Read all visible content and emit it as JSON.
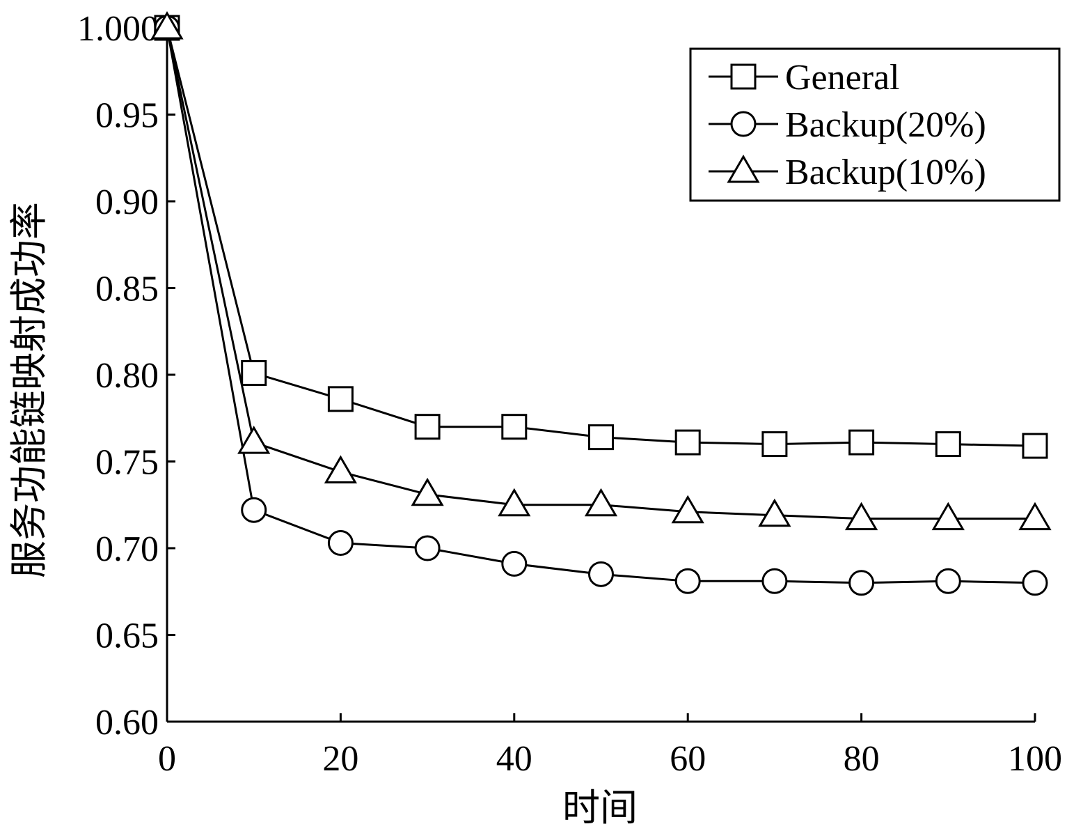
{
  "chart_data": {
    "type": "line",
    "title": "",
    "xlabel": "时间",
    "ylabel": "服务功能链映射成功率",
    "xlim": [
      0,
      100
    ],
    "ylim": [
      0.6,
      1.0
    ],
    "xticks": [
      0,
      20,
      40,
      60,
      80,
      100
    ],
    "xtick_labels": [
      "0",
      "20",
      "40",
      "60",
      "80",
      "100"
    ],
    "yticks": [
      0.6,
      0.65,
      0.7,
      0.75,
      0.8,
      0.85,
      0.9,
      0.95,
      1.0
    ],
    "ytick_labels": [
      "0.60",
      "0.65",
      "0.70",
      "0.75",
      "0.80",
      "0.85",
      "0.90",
      "0.95",
      "1.000"
    ],
    "grid": false,
    "legend_position": "top-right",
    "x": [
      0,
      10,
      20,
      30,
      40,
      50,
      60,
      70,
      80,
      90,
      100
    ],
    "series": [
      {
        "name": "General",
        "marker": "square",
        "values": [
          1.0,
          0.801,
          0.786,
          0.77,
          0.77,
          0.764,
          0.761,
          0.76,
          0.761,
          0.76,
          0.759
        ]
      },
      {
        "name": "Backup(20%)",
        "marker": "circle",
        "values": [
          1.0,
          0.722,
          0.703,
          0.7,
          0.691,
          0.685,
          0.681,
          0.681,
          0.68,
          0.681,
          0.68
        ]
      },
      {
        "name": "Backup(10%)",
        "marker": "triangle",
        "values": [
          1.0,
          0.761,
          0.744,
          0.731,
          0.725,
          0.725,
          0.721,
          0.719,
          0.717,
          0.717,
          0.717
        ]
      }
    ]
  }
}
